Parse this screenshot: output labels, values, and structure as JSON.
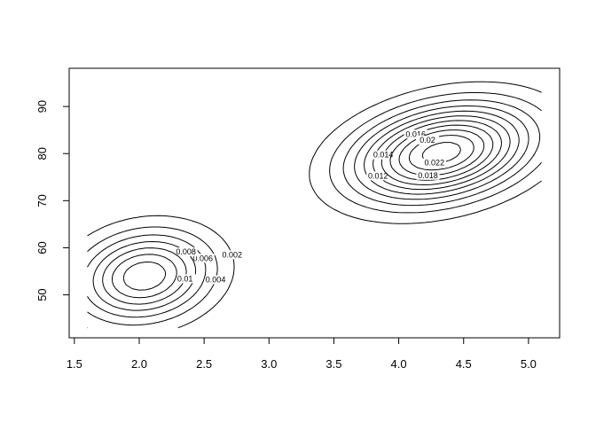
{
  "chart_data": {
    "type": "contour",
    "levels": [
      0.002,
      0.004,
      0.006,
      0.008,
      0.01,
      0.012,
      0.014,
      0.016,
      0.018,
      0.02,
      0.022
    ],
    "color": "#000000",
    "xlim": [
      1.46,
      5.24
    ],
    "ylim": [
      40.88,
      98.12
    ],
    "xticks": [
      {
        "value": 1.5,
        "label": "1.5"
      },
      {
        "value": 2,
        "label": "2.0"
      },
      {
        "value": 2.5,
        "label": "2.5"
      },
      {
        "value": 3,
        "label": "3.0"
      },
      {
        "value": 3.5,
        "label": "3.5"
      },
      {
        "value": 4,
        "label": "4.0"
      },
      {
        "value": 4.5,
        "label": "4.5"
      },
      {
        "value": 5,
        "label": "5.0"
      }
    ],
    "yticks": [
      50,
      60,
      70,
      80,
      90
    ]
  }
}
